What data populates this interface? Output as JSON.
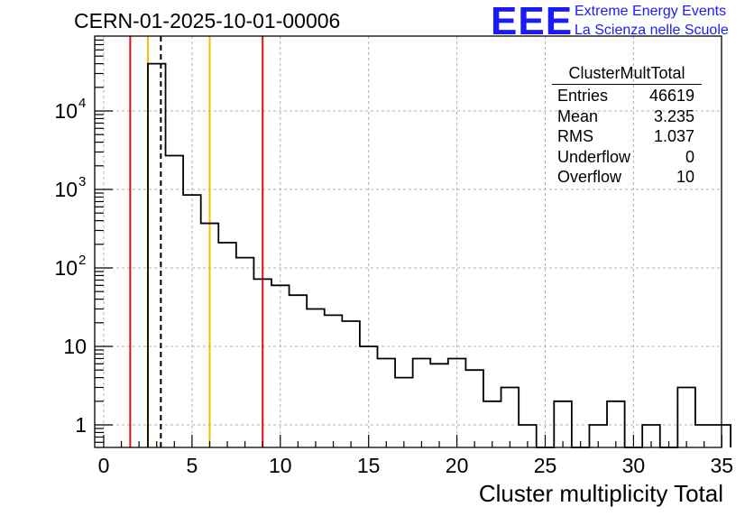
{
  "header": {
    "title": "CERN-01-2025-10-01-00006"
  },
  "logo": {
    "mark": "EEE",
    "line1": "Extreme Energy Events",
    "line2": "La Scienza nelle Scuole"
  },
  "stats_box": {
    "title": "ClusterMultTotal",
    "rows": [
      {
        "label": "Entries",
        "value": "46619"
      },
      {
        "label": "Mean",
        "value": "3.235"
      },
      {
        "label": "RMS",
        "value": "1.037"
      },
      {
        "label": "Underflow",
        "value": "0"
      },
      {
        "label": "Overflow",
        "value": "10"
      }
    ]
  },
  "colors": {
    "histogram": "#000000",
    "red_line": "#dd1111",
    "yellow_line": "#f0c000",
    "grid": "#b0b0b0"
  },
  "chart_data": {
    "type": "bar",
    "title": "CERN-01-2025-10-01-00006",
    "xlabel": "Cluster multiplicity Total",
    "ylabel": "",
    "xlim": [
      -0.5,
      35.5
    ],
    "ylim": [
      0.5,
      80000
    ],
    "yscale": "log",
    "grid": true,
    "bin_edges_start": 2.5,
    "bin_width": 1,
    "values": [
      40000,
      2700,
      850,
      370,
      210,
      135,
      72,
      60,
      45,
      30,
      25,
      21,
      10,
      7,
      4,
      7,
      6,
      7,
      5,
      2,
      3,
      1,
      0,
      2,
      0,
      1,
      2,
      0,
      1,
      0,
      3,
      1,
      1
    ],
    "x_ticks": [
      "0",
      "5",
      "10",
      "15",
      "20",
      "25",
      "30",
      "35"
    ],
    "x_tick_values": [
      0,
      5,
      10,
      15,
      20,
      25,
      30,
      35
    ],
    "y_ticks": [
      {
        "value": 1,
        "mantissa": "1",
        "exponent": ""
      },
      {
        "value": 10,
        "mantissa": "10",
        "exponent": ""
      },
      {
        "value": 100,
        "mantissa": "10",
        "exponent": "2"
      },
      {
        "value": 1000,
        "mantissa": "10",
        "exponent": "3"
      },
      {
        "value": 10000,
        "mantissa": "10",
        "exponent": "4"
      }
    ],
    "vertical_lines": [
      {
        "x": 1.5,
        "color": "red",
        "style": "solid"
      },
      {
        "x": 2.5,
        "color": "yellow",
        "style": "solid"
      },
      {
        "x": 3.235,
        "color": "black",
        "style": "dashed"
      },
      {
        "x": 6.0,
        "color": "yellow",
        "style": "solid"
      },
      {
        "x": 9.0,
        "color": "red",
        "style": "solid"
      }
    ],
    "legend": "top-right"
  }
}
